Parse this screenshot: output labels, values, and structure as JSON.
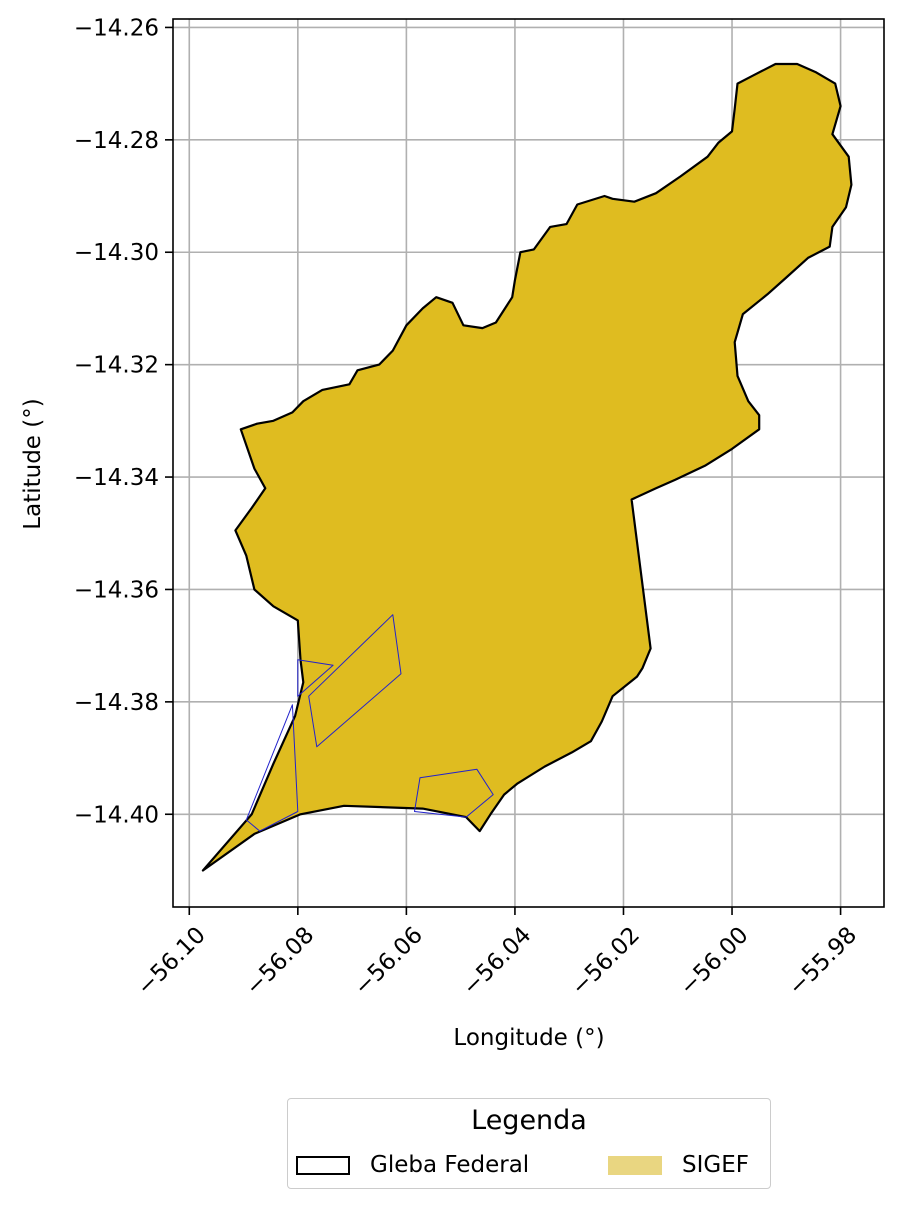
{
  "chart_data": {
    "type": "map",
    "title": "",
    "xlabel": "Longitude (°)",
    "ylabel": "Latitude (°)",
    "xlim": [
      -56.103,
      -55.972
    ],
    "ylim": [
      -14.4165,
      -14.2585
    ],
    "xticks": [
      -56.1,
      -56.08,
      -56.06,
      -56.04,
      -56.02,
      -56.0,
      -55.98
    ],
    "xtick_labels": [
      "−56.10",
      "−56.08",
      "−56.06",
      "−56.04",
      "−56.02",
      "−56.00",
      "−55.98"
    ],
    "yticks": [
      -14.26,
      -14.28,
      -14.3,
      -14.32,
      -14.34,
      -14.36,
      -14.38,
      -14.4
    ],
    "ytick_labels": [
      "−14.26",
      "−14.28",
      "−14.30",
      "−14.32",
      "−14.34",
      "−14.36",
      "−14.38",
      "−14.40"
    ],
    "grid": true,
    "layers": [
      {
        "name": "Gleba Federal",
        "fill": "#DFBC20",
        "stroke": "#000000",
        "polygon": [
          [
            -56.0905,
            -14.3315
          ],
          [
            -56.0875,
            -14.3305
          ],
          [
            -56.0845,
            -14.33
          ],
          [
            -56.081,
            -14.3285
          ],
          [
            -56.079,
            -14.3265
          ],
          [
            -56.0755,
            -14.3245
          ],
          [
            -56.0705,
            -14.3235
          ],
          [
            -56.069,
            -14.321
          ],
          [
            -56.065,
            -14.32
          ],
          [
            -56.0625,
            -14.3175
          ],
          [
            -56.06,
            -14.313
          ],
          [
            -56.057,
            -14.31
          ],
          [
            -56.0545,
            -14.308
          ],
          [
            -56.0515,
            -14.309
          ],
          [
            -56.0495,
            -14.313
          ],
          [
            -56.046,
            -14.3135
          ],
          [
            -56.0435,
            -14.3125
          ],
          [
            -56.0405,
            -14.308
          ],
          [
            -56.04,
            -14.305
          ],
          [
            -56.039,
            -14.3
          ],
          [
            -56.0365,
            -14.2995
          ],
          [
            -56.0335,
            -14.2955
          ],
          [
            -56.0305,
            -14.295
          ],
          [
            -56.0285,
            -14.2915
          ],
          [
            -56.0235,
            -14.29
          ],
          [
            -56.022,
            -14.2905
          ],
          [
            -56.018,
            -14.291
          ],
          [
            -56.014,
            -14.2895
          ],
          [
            -56.0095,
            -14.2865
          ],
          [
            -56.0045,
            -14.283
          ],
          [
            -56.0025,
            -14.2805
          ],
          [
            -56.0,
            -14.2785
          ],
          [
            -55.9995,
            -14.2745
          ],
          [
            -55.999,
            -14.27
          ],
          [
            -55.996,
            -14.2685
          ],
          [
            -55.992,
            -14.2665
          ],
          [
            -55.988,
            -14.2665
          ],
          [
            -55.9845,
            -14.268
          ],
          [
            -55.981,
            -14.27
          ],
          [
            -55.98,
            -14.274
          ],
          [
            -55.9815,
            -14.279
          ],
          [
            -55.9785,
            -14.283
          ],
          [
            -55.978,
            -14.288
          ],
          [
            -55.979,
            -14.292
          ],
          [
            -55.9815,
            -14.2955
          ],
          [
            -55.982,
            -14.299
          ],
          [
            -55.986,
            -14.301
          ],
          [
            -55.99,
            -14.3045
          ],
          [
            -55.9935,
            -14.3075
          ],
          [
            -55.998,
            -14.311
          ],
          [
            -55.9995,
            -14.316
          ],
          [
            -55.999,
            -14.322
          ],
          [
            -55.997,
            -14.3265
          ],
          [
            -55.995,
            -14.329
          ],
          [
            -55.995,
            -14.3315
          ],
          [
            -56.0,
            -14.335
          ],
          [
            -56.005,
            -14.338
          ],
          [
            -56.0105,
            -14.3405
          ],
          [
            -56.014,
            -14.342
          ],
          [
            -56.0185,
            -14.344
          ],
          [
            -56.015,
            -14.3705
          ],
          [
            -56.0165,
            -14.374
          ],
          [
            -56.0175,
            -14.3755
          ],
          [
            -56.022,
            -14.379
          ],
          [
            -56.024,
            -14.3835
          ],
          [
            -56.026,
            -14.387
          ],
          [
            -56.0295,
            -14.389
          ],
          [
            -56.0345,
            -14.3915
          ],
          [
            -56.0395,
            -14.3945
          ],
          [
            -56.042,
            -14.3965
          ],
          [
            -56.0445,
            -14.4
          ],
          [
            -56.0465,
            -14.403
          ],
          [
            -56.049,
            -14.4005
          ],
          [
            -56.057,
            -14.399
          ],
          [
            -56.0715,
            -14.3985
          ],
          [
            -56.0795,
            -14.4
          ],
          [
            -56.088,
            -14.4035
          ],
          [
            -56.0975,
            -14.41
          ],
          [
            -56.0885,
            -14.4
          ],
          [
            -56.0845,
            -14.391
          ],
          [
            -56.0805,
            -14.3825
          ],
          [
            -56.079,
            -14.3765
          ],
          [
            -56.0795,
            -14.3725
          ],
          [
            -56.08,
            -14.3655
          ],
          [
            -56.0845,
            -14.363
          ],
          [
            -56.088,
            -14.36
          ],
          [
            -56.0895,
            -14.354
          ],
          [
            -56.0915,
            -14.3495
          ],
          [
            -56.0885,
            -14.3455
          ],
          [
            -56.086,
            -14.342
          ],
          [
            -56.088,
            -14.3385
          ],
          [
            -56.0905,
            -14.3315
          ]
        ]
      },
      {
        "name": "SIGEF",
        "fill": "none",
        "stroke": "#2222CC",
        "polygons": [
          [
            [
              -56.078,
              -14.379
            ],
            [
              -56.0625,
              -14.3645
            ],
            [
              -56.061,
              -14.375
            ],
            [
              -56.0765,
              -14.388
            ]
          ],
          [
            [
              -56.08,
              -14.3725
            ],
            [
              -56.0735,
              -14.3735
            ],
            [
              -56.08,
              -14.379
            ]
          ],
          [
            [
              -56.081,
              -14.3805
            ],
            [
              -56.0895,
              -14.401
            ],
            [
              -56.087,
              -14.403
            ],
            [
              -56.08,
              -14.3995
            ]
          ],
          [
            [
              -56.0585,
              -14.3995
            ],
            [
              -56.0575,
              -14.3935
            ],
            [
              -56.047,
              -14.392
            ],
            [
              -56.044,
              -14.3965
            ],
            [
              -56.049,
              -14.4005
            ]
          ]
        ]
      }
    ],
    "legend": {
      "title": "Legenda",
      "placement": "bottom-center",
      "entries": [
        {
          "label": "Gleba Federal",
          "style": "outline",
          "color": "#000000"
        },
        {
          "label": "SIGEF",
          "style": "fill",
          "color": "#E9D681"
        }
      ]
    }
  }
}
